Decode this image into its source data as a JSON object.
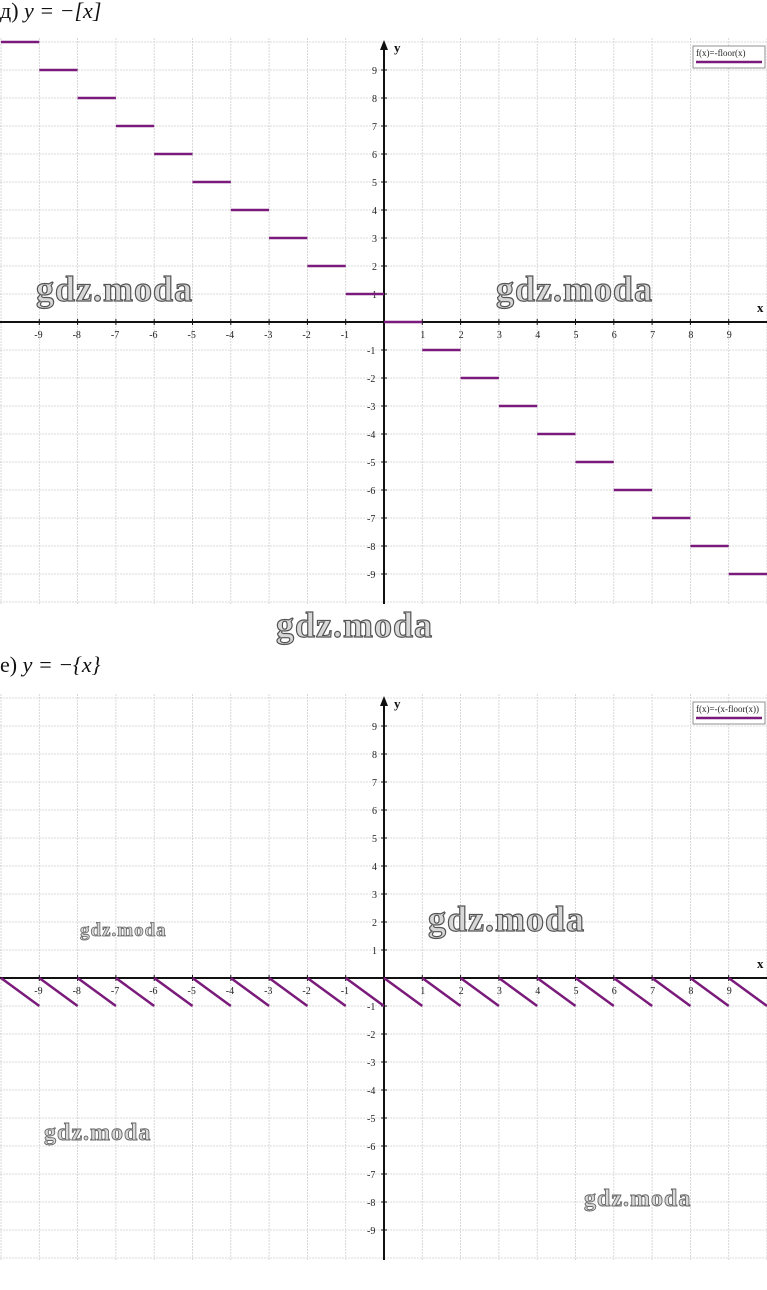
{
  "chart_data": [
    {
      "type": "line",
      "title": "д) y = −[x]",
      "title_prefix": "д)",
      "title_expr": "y = −[x]",
      "legend": "f(x)=-floor(x)",
      "legend_placement": "top-right",
      "xlabel": "x",
      "ylabel": "y",
      "xlim": [
        -10,
        10
      ],
      "ylim": [
        -10,
        10
      ],
      "grid": true,
      "color": "#7a1a7a",
      "x_ticks": [
        -9,
        -8,
        -7,
        -6,
        -5,
        -4,
        -3,
        -2,
        -1,
        1,
        2,
        3,
        4,
        5,
        6,
        7,
        8,
        9
      ],
      "y_ticks": [
        -9,
        -8,
        -7,
        -6,
        -5,
        -4,
        -3,
        -2,
        -1,
        1,
        2,
        3,
        4,
        5,
        6,
        7,
        8,
        9
      ],
      "series": [
        {
          "name": "f(x)=-floor(x)",
          "kind": "step",
          "segments": [
            {
              "x": [
                -10,
                -9
              ],
              "y": [
                10,
                10
              ]
            },
            {
              "x": [
                -9,
                -8
              ],
              "y": [
                9,
                9
              ]
            },
            {
              "x": [
                -8,
                -7
              ],
              "y": [
                8,
                8
              ]
            },
            {
              "x": [
                -7,
                -6
              ],
              "y": [
                7,
                7
              ]
            },
            {
              "x": [
                -6,
                -5
              ],
              "y": [
                6,
                6
              ]
            },
            {
              "x": [
                -5,
                -4
              ],
              "y": [
                5,
                5
              ]
            },
            {
              "x": [
                -4,
                -3
              ],
              "y": [
                4,
                4
              ]
            },
            {
              "x": [
                -3,
                -2
              ],
              "y": [
                3,
                3
              ]
            },
            {
              "x": [
                -2,
                -1
              ],
              "y": [
                2,
                2
              ]
            },
            {
              "x": [
                -1,
                0
              ],
              "y": [
                1,
                1
              ]
            },
            {
              "x": [
                0,
                1
              ],
              "y": [
                0,
                0
              ]
            },
            {
              "x": [
                1,
                2
              ],
              "y": [
                -1,
                -1
              ]
            },
            {
              "x": [
                2,
                3
              ],
              "y": [
                -2,
                -2
              ]
            },
            {
              "x": [
                3,
                4
              ],
              "y": [
                -3,
                -3
              ]
            },
            {
              "x": [
                4,
                5
              ],
              "y": [
                -4,
                -4
              ]
            },
            {
              "x": [
                5,
                6
              ],
              "y": [
                -5,
                -5
              ]
            },
            {
              "x": [
                6,
                7
              ],
              "y": [
                -6,
                -6
              ]
            },
            {
              "x": [
                7,
                8
              ],
              "y": [
                -7,
                -7
              ]
            },
            {
              "x": [
                8,
                9
              ],
              "y": [
                -8,
                -8
              ]
            },
            {
              "x": [
                9,
                10
              ],
              "y": [
                -9,
                -9
              ]
            }
          ]
        }
      ]
    },
    {
      "type": "line",
      "title": "е) y = −{x}",
      "title_prefix": "е)",
      "title_expr": "y = −{x}",
      "legend": "f(x)=-(x-floor(x))",
      "legend_placement": "top-right",
      "xlabel": "x",
      "ylabel": "y",
      "xlim": [
        -10,
        10
      ],
      "ylim": [
        -10,
        10
      ],
      "grid": true,
      "color": "#7a1a7a",
      "x_ticks": [
        -9,
        -8,
        -7,
        -6,
        -5,
        -4,
        -3,
        -2,
        -1,
        1,
        2,
        3,
        4,
        5,
        6,
        7,
        8,
        9
      ],
      "y_ticks": [
        -9,
        -8,
        -7,
        -6,
        -5,
        -4,
        -3,
        -2,
        -1,
        1,
        2,
        3,
        4,
        5,
        6,
        7,
        8,
        9
      ],
      "series": [
        {
          "name": "f(x)=-(x-floor(x))",
          "kind": "sawtooth",
          "segments": [
            {
              "x": [
                -10,
                -9
              ],
              "y": [
                0,
                -1
              ]
            },
            {
              "x": [
                -9,
                -8
              ],
              "y": [
                0,
                -1
              ]
            },
            {
              "x": [
                -8,
                -7
              ],
              "y": [
                0,
                -1
              ]
            },
            {
              "x": [
                -7,
                -6
              ],
              "y": [
                0,
                -1
              ]
            },
            {
              "x": [
                -6,
                -5
              ],
              "y": [
                0,
                -1
              ]
            },
            {
              "x": [
                -5,
                -4
              ],
              "y": [
                0,
                -1
              ]
            },
            {
              "x": [
                -4,
                -3
              ],
              "y": [
                0,
                -1
              ]
            },
            {
              "x": [
                -3,
                -2
              ],
              "y": [
                0,
                -1
              ]
            },
            {
              "x": [
                -2,
                -1
              ],
              "y": [
                0,
                -1
              ]
            },
            {
              "x": [
                -1,
                0
              ],
              "y": [
                0,
                -1
              ]
            },
            {
              "x": [
                0,
                1
              ],
              "y": [
                0,
                -1
              ]
            },
            {
              "x": [
                1,
                2
              ],
              "y": [
                0,
                -1
              ]
            },
            {
              "x": [
                2,
                3
              ],
              "y": [
                0,
                -1
              ]
            },
            {
              "x": [
                3,
                4
              ],
              "y": [
                0,
                -1
              ]
            },
            {
              "x": [
                4,
                5
              ],
              "y": [
                0,
                -1
              ]
            },
            {
              "x": [
                5,
                6
              ],
              "y": [
                0,
                -1
              ]
            },
            {
              "x": [
                6,
                7
              ],
              "y": [
                0,
                -1
              ]
            },
            {
              "x": [
                7,
                8
              ],
              "y": [
                0,
                -1
              ]
            },
            {
              "x": [
                8,
                9
              ],
              "y": [
                0,
                -1
              ]
            },
            {
              "x": [
                9,
                10
              ],
              "y": [
                0,
                -1
              ]
            }
          ]
        }
      ]
    }
  ],
  "watermarks": {
    "text": "gdz.moda"
  }
}
